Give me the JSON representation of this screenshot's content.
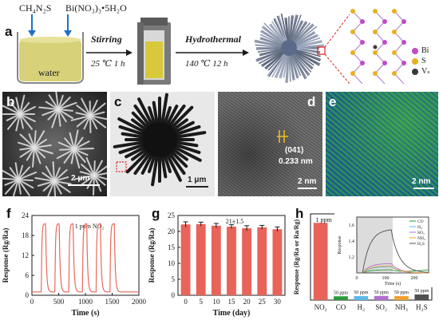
{
  "panel_a": {
    "label": "a",
    "reagent_1": "CH₄N₂S",
    "reagent_2": "Bi(NO₃)₃•5H₂O",
    "solvent": "water",
    "step_1_name": "Stirring",
    "step_1_cond": "25 ℃  1 h",
    "step_2_name": "Hydrothermal",
    "step_2_cond": "140 ℃  12 h",
    "legend": [
      {
        "label": "Bi",
        "color": "#c04bc8"
      },
      {
        "label": "S",
        "color": "#e8b020"
      },
      {
        "label": "Vₛ",
        "color": "#3a3a3a"
      }
    ]
  },
  "panel_b": {
    "label": "b",
    "scale": "2 μm"
  },
  "panel_c": {
    "label": "c",
    "scale": "1 μm"
  },
  "panel_d": {
    "label": "d",
    "plane": "(041)",
    "spacing": "0.233 nm",
    "scale": "2 nm"
  },
  "panel_e": {
    "label": "e",
    "scale": "2 nm"
  },
  "panel_f": {
    "label": "f",
    "annotation": "1 ppm NO₂"
  },
  "panel_g": {
    "label": "g",
    "annotation": "21±1.5"
  },
  "panel_h": {
    "label": "h",
    "annotation_main": "1 ppm",
    "inset_ylabel": "Response",
    "inset_xlabel": "Time (s)"
  },
  "chart_data": [
    {
      "panel": "f",
      "type": "line",
      "title": "",
      "xlabel": "Time (s)",
      "ylabel": "Response (Rg/Ra)",
      "xlim": [
        0,
        2000
      ],
      "ylim": [
        0,
        24
      ],
      "xticks": [
        0,
        500,
        1000,
        1500,
        2000
      ],
      "yticks": [
        0,
        6,
        12,
        18,
        24
      ],
      "color": "#e86a5a",
      "cycles": 6,
      "baseline": 1,
      "peak": 21.5,
      "pulse_starts": [
        175,
        430,
        690,
        945,
        1200,
        1460
      ],
      "pulse_duration": 80,
      "period": 255
    },
    {
      "panel": "g",
      "type": "bar",
      "title": "",
      "xlabel": "Time (day)",
      "ylabel": "Response (Rg/Ra)",
      "categories": [
        "0",
        "5",
        "10",
        "15",
        "20",
        "25",
        "30"
      ],
      "values": [
        22.2,
        22.3,
        21.8,
        21.5,
        21.0,
        21.3,
        20.7
      ],
      "errors": [
        0.8,
        0.6,
        0.7,
        0.6,
        0.8,
        0.6,
        0.7
      ],
      "ylim": [
        0,
        25
      ],
      "yticks": [
        0,
        5,
        10,
        15,
        20,
        25
      ],
      "color": "#e8645a"
    },
    {
      "panel": "h",
      "type": "bar",
      "title": "",
      "xlabel": "",
      "ylabel": "Response (Rg/Ra or Ra/Rg)",
      "categories": [
        "NO₂",
        "CO",
        "H₂",
        "SO₂",
        "NH₃",
        "H₂S"
      ],
      "concentrations": [
        "1 ppm",
        "50 ppm",
        "50 ppm",
        "50 ppm",
        "50 ppm",
        "50 ppm"
      ],
      "values": [
        21.5,
        1.05,
        1.1,
        1.15,
        1.1,
        1.55
      ],
      "colors": [
        "#e8645a",
        "#2a9a3a",
        "#5bb8e8",
        "#b070d0",
        "#f0a030",
        "#505050"
      ],
      "ylim": [
        0,
        24
      ],
      "inset": {
        "type": "line",
        "xlabel": "Time (s)",
        "ylabel": "Response",
        "xlim": [
          0,
          250
        ],
        "ylim": [
          1.0,
          1.7
        ],
        "xticks": [
          0,
          100,
          200
        ],
        "yticks": [
          1.2,
          1.4,
          1.6
        ],
        "series": [
          {
            "name": "CO",
            "color": "#2a9a3a",
            "plateau": 1.04
          },
          {
            "name": "H₂",
            "color": "#5bb8e8",
            "plateau": 1.08
          },
          {
            "name": "SO₂",
            "color": "#b070d0",
            "plateau": 1.12
          },
          {
            "name": "NH₃",
            "color": "#f0a030",
            "plateau": 1.09
          },
          {
            "name": "H₂S",
            "color": "#505050",
            "plateau": 1.55
          }
        ]
      }
    }
  ]
}
